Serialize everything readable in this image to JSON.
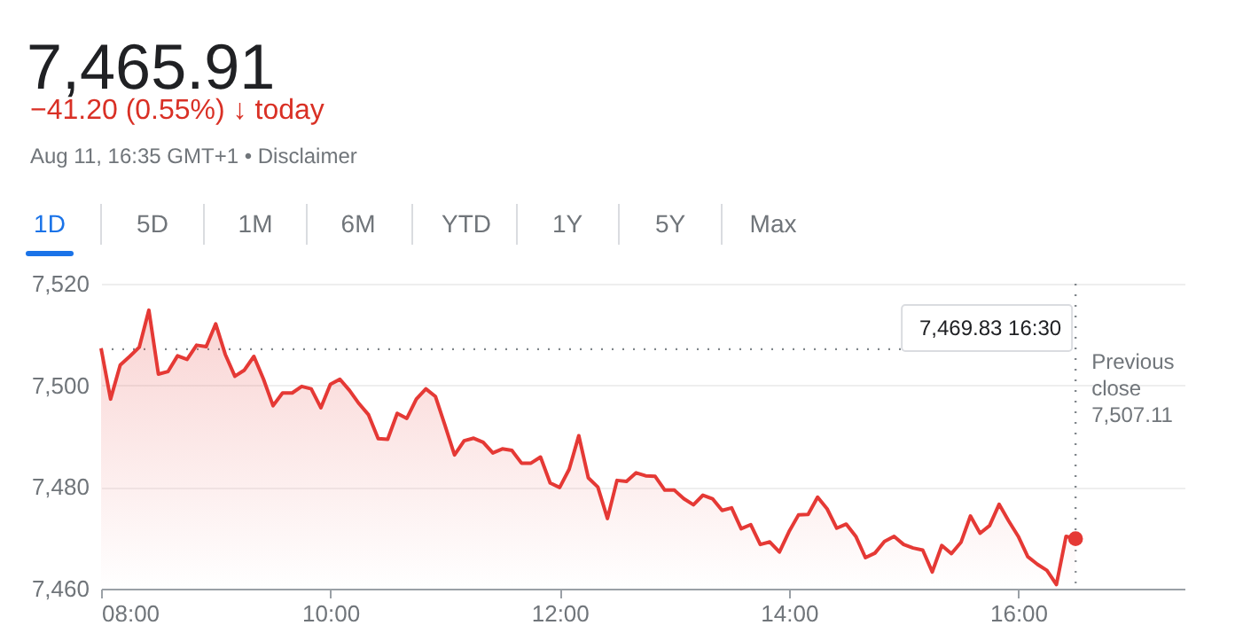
{
  "chart_data": {
    "type": "area",
    "title": "7,465.91",
    "subtitle": "−41.20 (0.55%) ↓ today",
    "annotations": [
      "Aug 11, 16:35 GMT+1 • Disclaimer",
      "1D",
      "5D",
      "1M",
      "6M",
      "YTD",
      "1Y",
      "5Y",
      "Max",
      "7,469.83  16:30"
    ],
    "x": [
      8,
      8.083,
      8.167,
      8.25,
      8.333,
      8.417,
      8.5,
      8.583,
      8.667,
      8.75,
      8.833,
      8.917,
      9,
      9.083,
      9.167,
      9.25,
      9.333,
      9.417,
      9.5,
      9.583,
      9.667,
      9.75,
      9.833,
      9.917,
      10,
      10.083,
      10.167,
      10.25,
      10.333,
      10.417,
      10.5,
      10.583,
      10.667,
      10.75,
      10.833,
      10.917,
      11,
      11.083,
      11.167,
      11.25,
      11.333,
      11.417,
      11.5,
      11.583,
      11.667,
      11.75,
      11.833,
      11.917,
      12,
      12.083,
      12.167,
      12.25,
      12.333,
      12.417,
      12.5,
      12.583,
      12.667,
      12.75,
      12.833,
      12.917,
      13,
      13.083,
      13.167,
      13.25,
      13.333,
      13.417,
      13.5,
      13.583,
      13.667,
      13.75,
      13.833,
      13.917,
      14,
      14.083,
      14.167,
      14.25,
      14.333,
      14.417,
      14.5,
      14.583,
      14.667,
      14.75,
      14.833,
      14.917,
      15,
      15.083,
      15.167,
      15.25,
      15.333,
      15.417,
      15.5,
      15.583,
      15.667,
      15.75,
      15.833,
      15.917,
      16,
      16.083,
      16.167,
      16.25,
      16.333,
      16.417,
      16.5
    ],
    "series": [
      {
        "color": "#e53935",
        "values": [
          7507.3,
          7497.3,
          7504,
          7505.7,
          7507.5,
          7514.8,
          7502.2,
          7502.7,
          7505.8,
          7505.1,
          7507.9,
          7507.6,
          7512.1,
          7506.1,
          7501.8,
          7503,
          7505.7,
          7501.2,
          7496,
          7498.5,
          7498.5,
          7499.8,
          7499.3,
          7495.6,
          7500.2,
          7501.2,
          7499,
          7496.4,
          7494.2,
          7489.5,
          7489.4,
          7494.5,
          7493.5,
          7497.3,
          7499.3,
          7497.8,
          7492.1,
          7486.3,
          7489.1,
          7489.6,
          7488.8,
          7486.7,
          7487.5,
          7487.2,
          7484.7,
          7484.7,
          7485.9,
          7480.8,
          7479.9,
          7483.5,
          7490.1,
          7481.8,
          7480,
          7473.8,
          7481.3,
          7481.1,
          7482.8,
          7482.2,
          7482.1,
          7479.4,
          7479.4,
          7477.7,
          7476.5,
          7478.4,
          7477.7,
          7475.4,
          7475.9,
          7471.8,
          7472.6,
          7468.7,
          7469.2,
          7467.2,
          7471.2,
          7474.5,
          7474.6,
          7478,
          7475.7,
          7471.9,
          7472.7,
          7470.3,
          7466.1,
          7467,
          7469.3,
          7470.3,
          7468.7,
          7468,
          7467.6,
          7463.3,
          7468.5,
          7466.9,
          7469.1,
          7474.3,
          7470.9,
          7472.4,
          7476.6,
          7473.3,
          7470.3,
          7466.3,
          7464.8,
          7463.6,
          7460.8,
          7470.3,
          7469.83
        ]
      },
      {
        "type": "scatter",
        "color": "#e53935",
        "x": [
          16.5
        ],
        "values": [
          7469.83
        ]
      }
    ],
    "xlim": [
      8,
      17.45
    ],
    "xticks": [
      {
        "value": 8,
        "label": "08:00"
      },
      {
        "value": 10,
        "label": "10:00"
      },
      {
        "value": 12,
        "label": "12:00"
      },
      {
        "value": 14,
        "label": "14:00"
      },
      {
        "value": 16,
        "label": "16:00"
      }
    ],
    "ylim": [
      7460,
      7520
    ],
    "yticks": [
      {
        "value": 7460,
        "label": "7,460"
      },
      {
        "value": 7480,
        "label": "7,480"
      },
      {
        "value": 7500,
        "label": "7,500"
      },
      {
        "value": 7520,
        "label": "7,520"
      }
    ],
    "ref_lines": [
      {
        "axis": "y",
        "value": 7507.11,
        "label": "Previous close 7,507.11",
        "color": "#80868b",
        "line_style": "dotted"
      },
      {
        "axis": "x",
        "value": 16.5,
        "color": "#80868b",
        "line_style": "dotted"
      }
    ],
    "grid": "y"
  }
}
